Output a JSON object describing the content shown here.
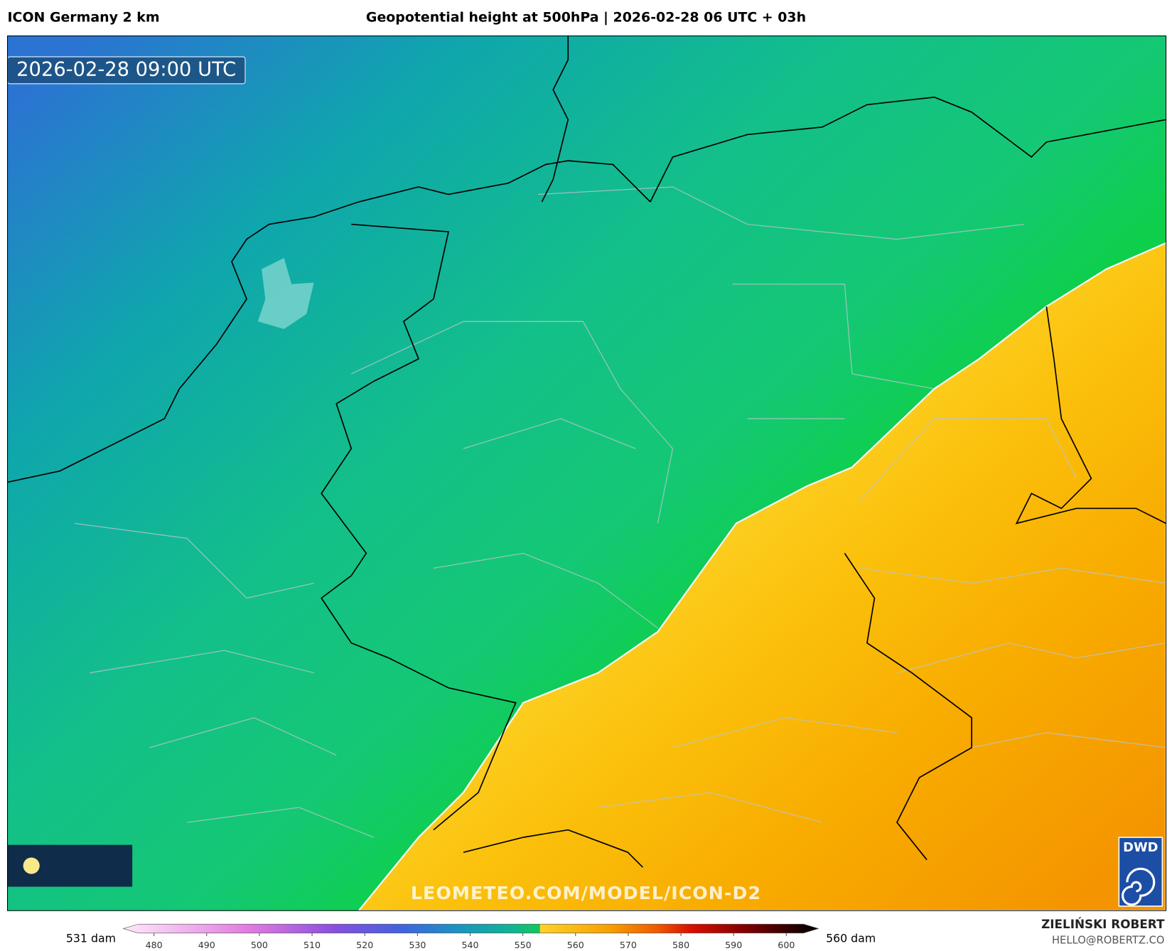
{
  "header": {
    "model": "ICON Germany 2 km",
    "title": "Geopotential height at 500hPa | 2026-02-28 06 UTC + 03h"
  },
  "map": {
    "valid_time": "2026-02-28 09:00 UTC",
    "watermark": "LEOMETEO.COM/MODEL/ICON-D2",
    "logo": "DWD"
  },
  "legend": {
    "min_label": "531 dam",
    "max_label": "560 dam",
    "ticks": [
      480,
      490,
      500,
      510,
      520,
      530,
      540,
      550,
      560,
      570,
      580,
      590,
      600
    ]
  },
  "credits": {
    "author": "ZIELIŃSKI ROBERT",
    "contact": "HELLO@ROBERTZ.CO"
  }
}
